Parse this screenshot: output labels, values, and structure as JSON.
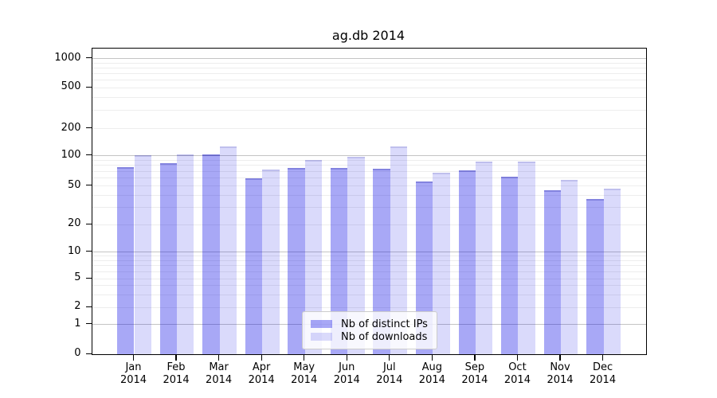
{
  "chart_data": {
    "type": "bar",
    "title": "ag.db 2014",
    "categories": [
      "Jan",
      "Feb",
      "Mar",
      "Apr",
      "May",
      "Jun",
      "Jul",
      "Aug",
      "Sep",
      "Oct",
      "Nov",
      "Dec"
    ],
    "x_year_label": "2014",
    "series": [
      {
        "name": "Nb of distinct IPs",
        "color": "rgba(0,0,230,0.34)",
        "edge_color": "rgba(0,0,140,0.22)",
        "values": [
          77,
          84,
          103,
          60,
          76,
          76,
          74,
          55,
          72,
          62,
          45,
          37
        ]
      },
      {
        "name": "Nb of downloads",
        "color": "rgba(0,0,230,0.145)",
        "edge_color": "rgba(0,0,140,0.12)",
        "values": [
          101,
          104,
          126,
          73,
          91,
          98,
          126,
          68,
          88,
          88,
          58,
          47
        ]
      }
    ],
    "y_axis": {
      "scale": "symlog",
      "ticks": [
        0,
        1,
        2,
        5,
        10,
        20,
        50,
        100,
        200,
        500,
        1000
      ],
      "range": [
        0,
        1260
      ]
    },
    "grid": true,
    "legend_position": "lower center",
    "colors": {
      "major_grid": "#c4c4c4",
      "minor_grid": "#ededed",
      "spine": "#000000"
    }
  }
}
